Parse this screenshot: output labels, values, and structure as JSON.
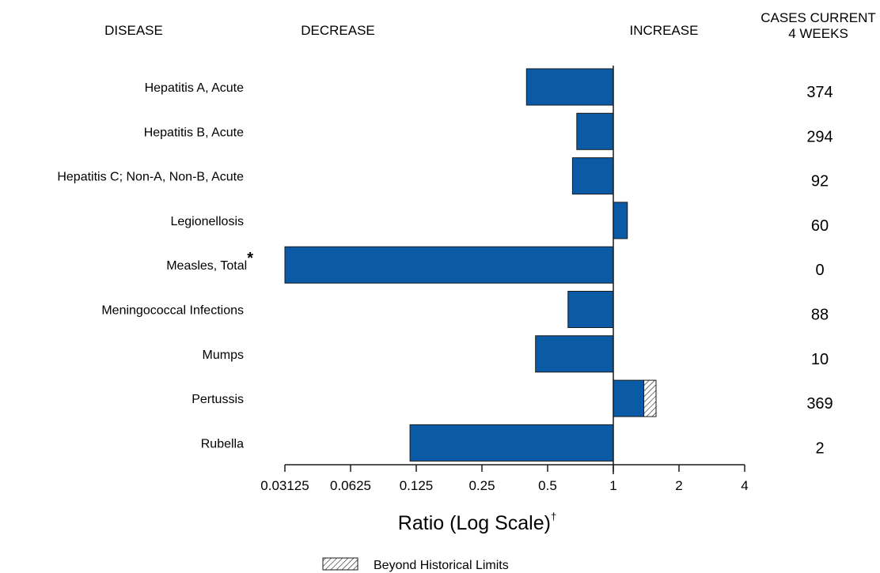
{
  "headers": {
    "disease": "DISEASE",
    "decrease": "DECREASE",
    "increase": "INCREASE",
    "cases_line1": "CASES CURRENT",
    "cases_line2": "4 WEEKS"
  },
  "legend": {
    "label": "Beyond Historical Limits"
  },
  "colors": {
    "bar": "#0a5aa6",
    "bar_edge": "#1a1a1a",
    "axis": "#1a1a1a"
  },
  "chart_data": {
    "type": "bar",
    "orientation": "horizontal",
    "xscale": "log2",
    "xlim": [
      0.03125,
      4
    ],
    "baseline": 1,
    "xlabel": "Ratio (Log Scale)",
    "xlabel_marker": "†",
    "xticks": [
      0.03125,
      0.0625,
      0.125,
      0.25,
      0.5,
      1,
      2,
      4
    ],
    "xtick_labels": [
      "0.03125",
      "0.0625",
      "0.125",
      "0.25",
      "0.5",
      "1",
      "2",
      "4"
    ],
    "categories": [
      "Hepatitis A, Acute",
      "Hepatitis B, Acute",
      "Hepatitis C; Non-A, Non-B, Acute",
      "Legionellosis",
      "Measles, Total",
      "Meningococcal Infections",
      "Mumps",
      "Pertussis",
      "Rubella"
    ],
    "category_markers": [
      "",
      "",
      "",
      "",
      "*",
      "",
      "",
      "",
      ""
    ],
    "ratio": [
      0.4,
      0.68,
      0.65,
      1.16,
      0.03125,
      0.62,
      0.44,
      1.57,
      0.117
    ],
    "beyond_historical_limits_from": [
      null,
      null,
      null,
      null,
      null,
      null,
      null,
      1.38,
      null
    ],
    "cases_current_4_weeks": [
      374,
      294,
      92,
      60,
      0,
      88,
      10,
      369,
      2
    ],
    "legend": [
      "Beyond Historical Limits"
    ]
  }
}
